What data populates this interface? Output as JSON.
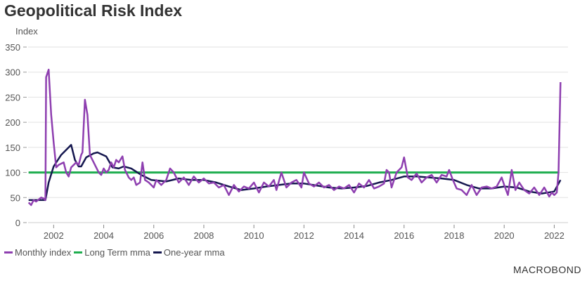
{
  "chart_data": {
    "type": "line",
    "title": "Geopolitical Risk Index",
    "ylabel": "Index",
    "xlabel": "",
    "ylim": [
      0,
      350
    ],
    "xlim": [
      2000.98,
      2022.55
    ],
    "yticks": [
      0,
      50,
      100,
      150,
      200,
      250,
      300,
      350
    ],
    "xticks": [
      2002,
      2004,
      2006,
      2008,
      2010,
      2012,
      2014,
      2016,
      2018,
      2020,
      2022
    ],
    "grid": true,
    "legend_position": "bottom-left",
    "series": [
      {
        "name": "Monthly index",
        "color": "#8e3fb0",
        "x": [
          2001.0,
          2001.1,
          2001.2,
          2001.3,
          2001.5,
          2001.6,
          2001.67,
          2001.7,
          2001.8,
          2001.9,
          2002.0,
          2002.1,
          2002.2,
          2002.4,
          2002.5,
          2002.6,
          2002.7,
          2002.9,
          2003.0,
          2003.1,
          2003.15,
          2003.25,
          2003.35,
          2003.45,
          2003.6,
          2003.8,
          2003.9,
          2004.0,
          2004.1,
          2004.2,
          2004.3,
          2004.4,
          2004.5,
          2004.6,
          2004.75,
          2004.85,
          2005.0,
          2005.1,
          2005.2,
          2005.3,
          2005.45,
          2005.55,
          2005.65,
          2005.8,
          2006.0,
          2006.1,
          2006.3,
          2006.5,
          2006.65,
          2006.8,
          2007.0,
          2007.2,
          2007.4,
          2007.6,
          2007.8,
          2008.0,
          2008.2,
          2008.4,
          2008.6,
          2008.8,
          2009.0,
          2009.2,
          2009.4,
          2009.6,
          2009.8,
          2010.0,
          2010.2,
          2010.4,
          2010.6,
          2010.8,
          2010.9,
          2011.1,
          2011.3,
          2011.5,
          2011.7,
          2011.9,
          2012.0,
          2012.2,
          2012.4,
          2012.6,
          2012.8,
          2013.0,
          2013.2,
          2013.4,
          2013.6,
          2013.8,
          2014.0,
          2014.2,
          2014.4,
          2014.6,
          2014.8,
          2015.0,
          2015.2,
          2015.3,
          2015.4,
          2015.5,
          2015.7,
          2015.9,
          2016.0,
          2016.15,
          2016.3,
          2016.5,
          2016.7,
          2016.9,
          2017.1,
          2017.3,
          2017.5,
          2017.7,
          2017.8,
          2017.95,
          2018.1,
          2018.3,
          2018.5,
          2018.7,
          2018.9,
          2019.1,
          2019.3,
          2019.5,
          2019.7,
          2019.9,
          2020.0,
          2020.15,
          2020.3,
          2020.45,
          2020.6,
          2020.8,
          2021.0,
          2021.2,
          2021.4,
          2021.6,
          2021.8,
          2021.9,
          2022.0,
          2022.1,
          2022.17,
          2022.25
        ],
        "values": [
          40,
          35,
          45,
          42,
          50,
          48,
          45,
          290,
          305,
          215,
          160,
          110,
          115,
          120,
          100,
          92,
          110,
          120,
          115,
          135,
          140,
          245,
          215,
          135,
          120,
          100,
          95,
          108,
          100,
          105,
          120,
          110,
          125,
          120,
          132,
          105,
          90,
          85,
          90,
          75,
          80,
          120,
          85,
          80,
          70,
          85,
          75,
          85,
          108,
          100,
          80,
          90,
          75,
          92,
          80,
          88,
          78,
          80,
          70,
          75,
          55,
          75,
          62,
          72,
          68,
          80,
          60,
          80,
          72,
          85,
          65,
          100,
          70,
          80,
          85,
          70,
          100,
          78,
          72,
          80,
          70,
          75,
          65,
          72,
          68,
          75,
          60,
          78,
          70,
          85,
          68,
          72,
          78,
          105,
          100,
          70,
          100,
          110,
          130,
          90,
          85,
          98,
          80,
          90,
          95,
          80,
          95,
          92,
          105,
          85,
          68,
          65,
          55,
          75,
          55,
          70,
          72,
          68,
          72,
          90,
          75,
          55,
          105,
          65,
          80,
          65,
          58,
          70,
          55,
          70,
          52,
          60,
          55,
          60,
          100,
          280
        ]
      },
      {
        "name": "Long Term mma",
        "color": "#1fae4f",
        "x": [
          2001.0,
          2022.2
        ],
        "values": [
          100,
          100
        ]
      },
      {
        "name": "One-year mma",
        "color": "#15174f",
        "x": [
          2001.0,
          2001.67,
          2001.8,
          2002.0,
          2002.3,
          2002.6,
          2002.7,
          2002.85,
          2003.0,
          2003.1,
          2003.3,
          2003.6,
          2003.75,
          2004.1,
          2004.35,
          2004.6,
          2004.8,
          2005.1,
          2005.5,
          2005.9,
          2006.5,
          2007.0,
          2007.5,
          2008.0,
          2008.5,
          2009.0,
          2009.5,
          2010.0,
          2010.5,
          2011.0,
          2011.5,
          2012.0,
          2012.5,
          2013.0,
          2013.5,
          2014.0,
          2014.5,
          2015.0,
          2015.5,
          2016.0,
          2016.5,
          2017.0,
          2017.5,
          2018.0,
          2018.5,
          2019.0,
          2019.5,
          2020.0,
          2020.5,
          2021.0,
          2021.5,
          2022.0,
          2022.25
        ],
        "values": [
          45,
          45,
          80,
          112,
          135,
          150,
          155,
          125,
          112,
          112,
          130,
          138,
          140,
          132,
          110,
          108,
          112,
          108,
          95,
          85,
          82,
          88,
          85,
          85,
          80,
          72,
          65,
          68,
          72,
          75,
          78,
          78,
          74,
          70,
          68,
          70,
          73,
          80,
          85,
          92,
          92,
          90,
          88,
          85,
          75,
          68,
          68,
          72,
          70,
          62,
          58,
          62,
          85
        ]
      }
    ]
  },
  "logo": "MACROBOND"
}
